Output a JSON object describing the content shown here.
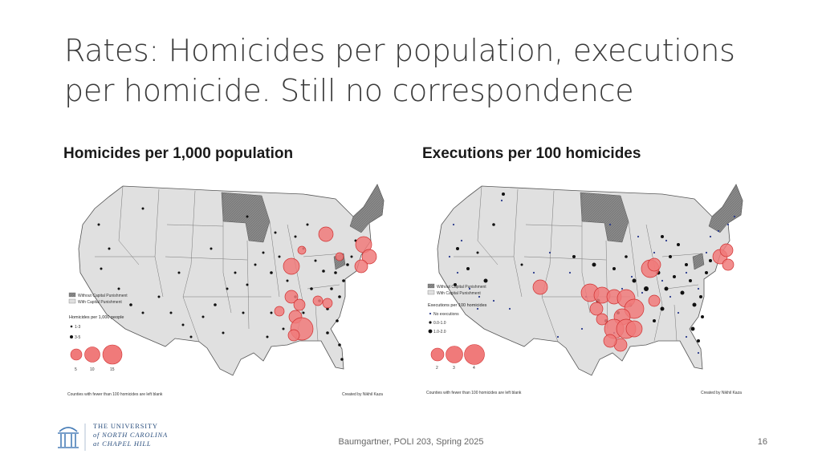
{
  "slide": {
    "title": "Rates: Homicides per population, executions per homicide. Still no correspondence",
    "left_heading": "Homicides per 1,000 population",
    "right_heading": "Executions per 100 homicides",
    "footer": "Baumgartner, POLI 203, Spring 2025",
    "page_number": "16"
  },
  "logo": {
    "line1": "THE UNIVERSITY",
    "line2": "of NORTH CAROLINA",
    "line3": "at CHAPEL HILL"
  },
  "left_map": {
    "legend_without": "Without Capital Punishment",
    "legend_with": "With Capital Punishment",
    "legend_title": "Homicides per 1,000 people",
    "legend_small1": "1-3",
    "legend_small2": "3-5",
    "bubble_labels": [
      "5",
      "10",
      "15"
    ],
    "note": "Counties with fewer than 100 homicides are left blank",
    "credit": "Created by Nikhil Kaza"
  },
  "right_map": {
    "legend_without": "Without Capital Punishment",
    "legend_with": "With Capital Punishment",
    "legend_title": "Executions per 100 homicides",
    "legend_items": [
      "No executions",
      "0.0-1.0",
      "1.0-2.0"
    ],
    "bubble_labels": [
      "2",
      "3",
      "4"
    ],
    "note": "Counties with fewer than 100 homicides are left blank",
    "credit": "Created by Nikhil Kaza"
  },
  "colors": {
    "title": "#3b3b3b",
    "state_fill": "#e0e0e0",
    "no_cp_fill": "#8a8a8a",
    "bubble": "#f07a7a",
    "bubble_stroke": "#d03030",
    "dot": "#111111",
    "blue_dot": "#2a3a8c"
  }
}
